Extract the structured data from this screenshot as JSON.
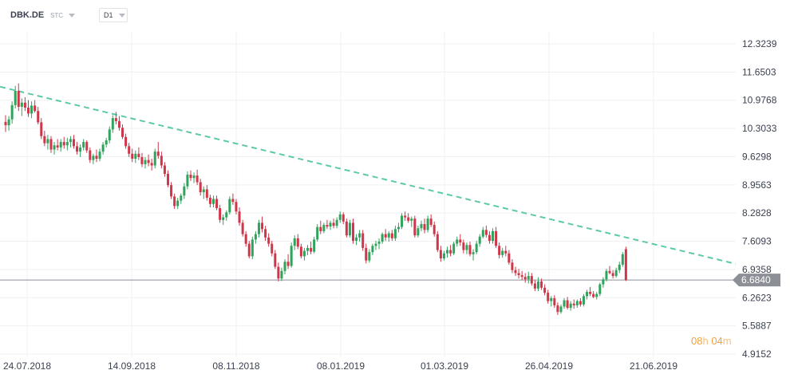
{
  "toolbar": {
    "symbol": "DBK.DE",
    "instrument_type": "STC",
    "timeframe": "D1"
  },
  "timer": {
    "hours": "08",
    "hours_unit": "h",
    "minutes": "04",
    "minutes_unit": "m"
  },
  "colors": {
    "up": "#2fa35b",
    "down": "#d0364a",
    "trendline": "#5cc9a7",
    "price_line": "#8a8f97",
    "grid": "#eef0f3",
    "price_tag_bg": "#8c9096"
  },
  "chart_data": {
    "type": "candlestick",
    "y_axis_ticks": [
      "12.3239",
      "11.6503",
      "10.9768",
      "10.3033",
      "9.6298",
      "8.9563",
      "8.2828",
      "7.6093",
      "6.9358",
      "6.2623",
      "5.5887",
      "4.9152"
    ],
    "ylim": [
      4.9152,
      12.3239
    ],
    "x_axis_ticks": [
      "24.07.2018",
      "14.09.2018",
      "08.11.2018",
      "08.01.2019",
      "01.03.2019",
      "26.04.2019",
      "21.06.2019"
    ],
    "last_price": "6.6840",
    "trendline": {
      "start": {
        "date": "2018-07-24",
        "price": 11.3
      },
      "end": {
        "date": "2019-07-05",
        "price": 7.07
      },
      "style": "dashed"
    },
    "grid": true,
    "candles": [
      {
        "o": 10.46,
        "h": 10.62,
        "l": 10.22,
        "c": 10.38
      },
      {
        "o": 10.38,
        "h": 10.6,
        "l": 10.25,
        "c": 10.52
      },
      {
        "o": 10.52,
        "h": 10.95,
        "l": 10.42,
        "c": 10.86
      },
      {
        "o": 10.86,
        "h": 11.32,
        "l": 10.78,
        "c": 11.2
      },
      {
        "o": 11.2,
        "h": 11.38,
        "l": 10.72,
        "c": 10.82
      },
      {
        "o": 10.82,
        "h": 11.02,
        "l": 10.6,
        "c": 10.92
      },
      {
        "o": 10.92,
        "h": 11.05,
        "l": 10.72,
        "c": 10.8
      },
      {
        "o": 10.8,
        "h": 10.98,
        "l": 10.58,
        "c": 10.66
      },
      {
        "o": 10.66,
        "h": 10.95,
        "l": 10.55,
        "c": 10.85
      },
      {
        "o": 10.85,
        "h": 10.98,
        "l": 10.68,
        "c": 10.72
      },
      {
        "o": 10.72,
        "h": 10.82,
        "l": 10.4,
        "c": 10.45
      },
      {
        "o": 10.45,
        "h": 10.55,
        "l": 10.05,
        "c": 10.12
      },
      {
        "o": 10.12,
        "h": 10.25,
        "l": 9.88,
        "c": 9.95
      },
      {
        "o": 9.95,
        "h": 10.15,
        "l": 9.8,
        "c": 10.05
      },
      {
        "o": 10.05,
        "h": 10.12,
        "l": 9.72,
        "c": 9.8
      },
      {
        "o": 9.8,
        "h": 9.98,
        "l": 9.68,
        "c": 9.9
      },
      {
        "o": 9.9,
        "h": 10.05,
        "l": 9.78,
        "c": 9.85
      },
      {
        "o": 9.85,
        "h": 10.05,
        "l": 9.75,
        "c": 9.98
      },
      {
        "o": 9.98,
        "h": 10.1,
        "l": 9.82,
        "c": 9.9
      },
      {
        "o": 9.9,
        "h": 10.08,
        "l": 9.78,
        "c": 9.98
      },
      {
        "o": 9.98,
        "h": 10.12,
        "l": 9.85,
        "c": 10.05
      },
      {
        "o": 10.05,
        "h": 10.15,
        "l": 9.82,
        "c": 9.88
      },
      {
        "o": 9.88,
        "h": 9.98,
        "l": 9.68,
        "c": 9.75
      },
      {
        "o": 9.75,
        "h": 9.92,
        "l": 9.62,
        "c": 9.85
      },
      {
        "o": 9.85,
        "h": 10.05,
        "l": 9.78,
        "c": 9.98
      },
      {
        "o": 9.98,
        "h": 10.02,
        "l": 9.72,
        "c": 9.78
      },
      {
        "o": 9.78,
        "h": 9.85,
        "l": 9.48,
        "c": 9.55
      },
      {
        "o": 9.55,
        "h": 9.7,
        "l": 9.45,
        "c": 9.65
      },
      {
        "o": 9.65,
        "h": 9.8,
        "l": 9.5,
        "c": 9.58
      },
      {
        "o": 9.58,
        "h": 9.82,
        "l": 9.52,
        "c": 9.75
      },
      {
        "o": 9.75,
        "h": 9.98,
        "l": 9.68,
        "c": 9.92
      },
      {
        "o": 9.92,
        "h": 10.08,
        "l": 9.85,
        "c": 10.02
      },
      {
        "o": 10.02,
        "h": 10.35,
        "l": 9.95,
        "c": 10.28
      },
      {
        "o": 10.28,
        "h": 10.62,
        "l": 10.2,
        "c": 10.55
      },
      {
        "o": 10.55,
        "h": 10.7,
        "l": 10.4,
        "c": 10.48
      },
      {
        "o": 10.48,
        "h": 10.6,
        "l": 10.25,
        "c": 10.32
      },
      {
        "o": 10.32,
        "h": 10.4,
        "l": 10.05,
        "c": 10.1
      },
      {
        "o": 10.1,
        "h": 10.18,
        "l": 9.82,
        "c": 9.88
      },
      {
        "o": 9.88,
        "h": 9.96,
        "l": 9.62,
        "c": 9.7
      },
      {
        "o": 9.7,
        "h": 9.82,
        "l": 9.5,
        "c": 9.58
      },
      {
        "o": 9.58,
        "h": 9.78,
        "l": 9.48,
        "c": 9.7
      },
      {
        "o": 9.7,
        "h": 9.85,
        "l": 9.55,
        "c": 9.62
      },
      {
        "o": 9.62,
        "h": 9.72,
        "l": 9.38,
        "c": 9.45
      },
      {
        "o": 9.45,
        "h": 9.62,
        "l": 9.35,
        "c": 9.55
      },
      {
        "o": 9.55,
        "h": 9.68,
        "l": 9.4,
        "c": 9.48
      },
      {
        "o": 9.48,
        "h": 9.58,
        "l": 9.3,
        "c": 9.42
      },
      {
        "o": 9.42,
        "h": 9.82,
        "l": 9.35,
        "c": 9.75
      },
      {
        "o": 9.75,
        "h": 9.98,
        "l": 9.58,
        "c": 9.65
      },
      {
        "o": 9.65,
        "h": 9.75,
        "l": 9.35,
        "c": 9.42
      },
      {
        "o": 9.42,
        "h": 9.5,
        "l": 9.15,
        "c": 9.22
      },
      {
        "o": 9.22,
        "h": 9.3,
        "l": 8.9,
        "c": 8.95
      },
      {
        "o": 8.95,
        "h": 9.02,
        "l": 8.62,
        "c": 8.68
      },
      {
        "o": 8.68,
        "h": 8.75,
        "l": 8.38,
        "c": 8.45
      },
      {
        "o": 8.45,
        "h": 8.65,
        "l": 8.38,
        "c": 8.58
      },
      {
        "o": 8.58,
        "h": 8.75,
        "l": 8.5,
        "c": 8.7
      },
      {
        "o": 8.7,
        "h": 9.0,
        "l": 8.62,
        "c": 8.92
      },
      {
        "o": 8.92,
        "h": 9.28,
        "l": 8.85,
        "c": 9.2
      },
      {
        "o": 9.2,
        "h": 9.3,
        "l": 9.05,
        "c": 9.12
      },
      {
        "o": 9.12,
        "h": 9.25,
        "l": 9.0,
        "c": 9.18
      },
      {
        "o": 9.18,
        "h": 9.32,
        "l": 8.95,
        "c": 9.02
      },
      {
        "o": 9.02,
        "h": 9.1,
        "l": 8.7,
        "c": 8.78
      },
      {
        "o": 8.78,
        "h": 8.92,
        "l": 8.62,
        "c": 8.85
      },
      {
        "o": 8.85,
        "h": 8.95,
        "l": 8.58,
        "c": 8.65
      },
      {
        "o": 8.65,
        "h": 8.72,
        "l": 8.42,
        "c": 8.5
      },
      {
        "o": 8.5,
        "h": 8.7,
        "l": 8.42,
        "c": 8.62
      },
      {
        "o": 8.62,
        "h": 8.7,
        "l": 8.35,
        "c": 8.4
      },
      {
        "o": 8.4,
        "h": 8.48,
        "l": 8.05,
        "c": 8.12
      },
      {
        "o": 8.12,
        "h": 8.25,
        "l": 8.0,
        "c": 8.18
      },
      {
        "o": 8.18,
        "h": 8.35,
        "l": 8.1,
        "c": 8.3
      },
      {
        "o": 8.3,
        "h": 8.68,
        "l": 8.25,
        "c": 8.62
      },
      {
        "o": 8.62,
        "h": 8.75,
        "l": 8.48,
        "c": 8.55
      },
      {
        "o": 8.55,
        "h": 8.62,
        "l": 8.25,
        "c": 8.32
      },
      {
        "o": 8.32,
        "h": 8.42,
        "l": 7.98,
        "c": 8.05
      },
      {
        "o": 8.05,
        "h": 8.12,
        "l": 7.72,
        "c": 7.78
      },
      {
        "o": 7.78,
        "h": 7.85,
        "l": 7.48,
        "c": 7.55
      },
      {
        "o": 7.55,
        "h": 7.62,
        "l": 7.2,
        "c": 7.25
      },
      {
        "o": 7.25,
        "h": 7.72,
        "l": 7.18,
        "c": 7.65
      },
      {
        "o": 7.65,
        "h": 7.85,
        "l": 7.55,
        "c": 7.78
      },
      {
        "o": 7.78,
        "h": 8.12,
        "l": 7.7,
        "c": 8.05
      },
      {
        "o": 8.05,
        "h": 8.2,
        "l": 7.82,
        "c": 7.9
      },
      {
        "o": 7.9,
        "h": 7.98,
        "l": 7.62,
        "c": 7.7
      },
      {
        "o": 7.7,
        "h": 7.8,
        "l": 7.48,
        "c": 7.55
      },
      {
        "o": 7.55,
        "h": 7.62,
        "l": 7.25,
        "c": 7.32
      },
      {
        "o": 7.32,
        "h": 7.4,
        "l": 6.95,
        "c": 7.0
      },
      {
        "o": 7.0,
        "h": 7.1,
        "l": 6.65,
        "c": 6.72
      },
      {
        "o": 6.72,
        "h": 6.98,
        "l": 6.66,
        "c": 6.9
      },
      {
        "o": 6.9,
        "h": 7.18,
        "l": 6.82,
        "c": 7.12
      },
      {
        "o": 7.12,
        "h": 7.3,
        "l": 6.95,
        "c": 7.02
      },
      {
        "o": 7.02,
        "h": 7.58,
        "l": 6.98,
        "c": 7.5
      },
      {
        "o": 7.5,
        "h": 7.75,
        "l": 7.4,
        "c": 7.68
      },
      {
        "o": 7.68,
        "h": 7.78,
        "l": 7.42,
        "c": 7.48
      },
      {
        "o": 7.48,
        "h": 7.55,
        "l": 7.2,
        "c": 7.25
      },
      {
        "o": 7.25,
        "h": 7.45,
        "l": 7.15,
        "c": 7.38
      },
      {
        "o": 7.38,
        "h": 7.52,
        "l": 7.28,
        "c": 7.45
      },
      {
        "o": 7.45,
        "h": 7.6,
        "l": 7.3,
        "c": 7.36
      },
      {
        "o": 7.36,
        "h": 7.72,
        "l": 7.32,
        "c": 7.65
      },
      {
        "o": 7.65,
        "h": 8.02,
        "l": 7.6,
        "c": 7.95
      },
      {
        "o": 7.95,
        "h": 8.1,
        "l": 7.78,
        "c": 7.85
      },
      {
        "o": 7.85,
        "h": 8.05,
        "l": 7.8,
        "c": 8.0
      },
      {
        "o": 8.0,
        "h": 8.12,
        "l": 7.9,
        "c": 7.96
      },
      {
        "o": 7.96,
        "h": 8.1,
        "l": 7.88,
        "c": 8.05
      },
      {
        "o": 8.05,
        "h": 8.15,
        "l": 7.92,
        "c": 7.98
      },
      {
        "o": 7.98,
        "h": 8.18,
        "l": 7.92,
        "c": 8.12
      },
      {
        "o": 8.12,
        "h": 8.32,
        "l": 8.05,
        "c": 8.25
      },
      {
        "o": 8.25,
        "h": 8.3,
        "l": 8.02,
        "c": 8.08
      },
      {
        "o": 8.08,
        "h": 8.15,
        "l": 7.7,
        "c": 7.75
      },
      {
        "o": 7.75,
        "h": 8.12,
        "l": 7.7,
        "c": 8.05
      },
      {
        "o": 8.05,
        "h": 8.15,
        "l": 7.55,
        "c": 7.62
      },
      {
        "o": 7.62,
        "h": 7.78,
        "l": 7.52,
        "c": 7.7
      },
      {
        "o": 7.7,
        "h": 7.88,
        "l": 7.6,
        "c": 7.8
      },
      {
        "o": 7.8,
        "h": 7.88,
        "l": 7.38,
        "c": 7.45
      },
      {
        "o": 7.45,
        "h": 7.55,
        "l": 7.08,
        "c": 7.15
      },
      {
        "o": 7.15,
        "h": 7.42,
        "l": 7.1,
        "c": 7.35
      },
      {
        "o": 7.35,
        "h": 7.55,
        "l": 7.28,
        "c": 7.5
      },
      {
        "o": 7.5,
        "h": 7.62,
        "l": 7.4,
        "c": 7.55
      },
      {
        "o": 7.55,
        "h": 7.68,
        "l": 7.42,
        "c": 7.6
      },
      {
        "o": 7.6,
        "h": 7.82,
        "l": 7.55,
        "c": 7.78
      },
      {
        "o": 7.78,
        "h": 7.9,
        "l": 7.62,
        "c": 7.7
      },
      {
        "o": 7.7,
        "h": 7.85,
        "l": 7.6,
        "c": 7.8
      },
      {
        "o": 7.8,
        "h": 7.88,
        "l": 7.62,
        "c": 7.68
      },
      {
        "o": 7.68,
        "h": 7.98,
        "l": 7.62,
        "c": 7.9
      },
      {
        "o": 7.9,
        "h": 8.05,
        "l": 7.82,
        "c": 7.95
      },
      {
        "o": 7.95,
        "h": 8.28,
        "l": 7.9,
        "c": 8.22
      },
      {
        "o": 8.22,
        "h": 8.32,
        "l": 8.1,
        "c": 8.18
      },
      {
        "o": 8.18,
        "h": 8.28,
        "l": 8.05,
        "c": 8.1
      },
      {
        "o": 8.1,
        "h": 8.2,
        "l": 7.95,
        "c": 8.15
      },
      {
        "o": 8.15,
        "h": 8.22,
        "l": 7.7,
        "c": 7.75
      },
      {
        "o": 7.75,
        "h": 7.98,
        "l": 7.7,
        "c": 7.92
      },
      {
        "o": 7.92,
        "h": 8.1,
        "l": 7.85,
        "c": 8.02
      },
      {
        "o": 8.02,
        "h": 8.15,
        "l": 7.8,
        "c": 7.88
      },
      {
        "o": 7.88,
        "h": 8.22,
        "l": 7.82,
        "c": 8.15
      },
      {
        "o": 8.15,
        "h": 8.25,
        "l": 7.95,
        "c": 8.0
      },
      {
        "o": 8.0,
        "h": 8.08,
        "l": 7.72,
        "c": 7.78
      },
      {
        "o": 7.78,
        "h": 7.85,
        "l": 7.35,
        "c": 7.4
      },
      {
        "o": 7.4,
        "h": 7.5,
        "l": 7.12,
        "c": 7.2
      },
      {
        "o": 7.2,
        "h": 7.38,
        "l": 7.15,
        "c": 7.32
      },
      {
        "o": 7.32,
        "h": 7.48,
        "l": 7.22,
        "c": 7.4
      },
      {
        "o": 7.4,
        "h": 7.52,
        "l": 7.25,
        "c": 7.32
      },
      {
        "o": 7.32,
        "h": 7.6,
        "l": 7.28,
        "c": 7.55
      },
      {
        "o": 7.55,
        "h": 7.72,
        "l": 7.48,
        "c": 7.65
      },
      {
        "o": 7.65,
        "h": 7.78,
        "l": 7.5,
        "c": 7.58
      },
      {
        "o": 7.58,
        "h": 7.65,
        "l": 7.32,
        "c": 7.4
      },
      {
        "o": 7.4,
        "h": 7.58,
        "l": 7.3,
        "c": 7.52
      },
      {
        "o": 7.52,
        "h": 7.6,
        "l": 7.25,
        "c": 7.3
      },
      {
        "o": 7.3,
        "h": 7.42,
        "l": 7.15,
        "c": 7.35
      },
      {
        "o": 7.35,
        "h": 7.62,
        "l": 7.3,
        "c": 7.55
      },
      {
        "o": 7.55,
        "h": 7.78,
        "l": 7.48,
        "c": 7.72
      },
      {
        "o": 7.72,
        "h": 7.95,
        "l": 7.68,
        "c": 7.88
      },
      {
        "o": 7.88,
        "h": 7.98,
        "l": 7.7,
        "c": 7.76
      },
      {
        "o": 7.76,
        "h": 7.85,
        "l": 7.55,
        "c": 7.62
      },
      {
        "o": 7.62,
        "h": 7.92,
        "l": 7.55,
        "c": 7.85
      },
      {
        "o": 7.85,
        "h": 7.95,
        "l": 7.45,
        "c": 7.5
      },
      {
        "o": 7.5,
        "h": 7.58,
        "l": 7.2,
        "c": 7.28
      },
      {
        "o": 7.28,
        "h": 7.45,
        "l": 7.22,
        "c": 7.38
      },
      {
        "o": 7.38,
        "h": 7.5,
        "l": 7.25,
        "c": 7.32
      },
      {
        "o": 7.32,
        "h": 7.4,
        "l": 7.05,
        "c": 7.1
      },
      {
        "o": 7.1,
        "h": 7.18,
        "l": 6.85,
        "c": 6.92
      },
      {
        "o": 6.92,
        "h": 7.0,
        "l": 6.78,
        "c": 6.85
      },
      {
        "o": 6.85,
        "h": 6.95,
        "l": 6.72,
        "c": 6.8
      },
      {
        "o": 6.8,
        "h": 6.9,
        "l": 6.68,
        "c": 6.76
      },
      {
        "o": 6.76,
        "h": 6.85,
        "l": 6.62,
        "c": 6.7
      },
      {
        "o": 6.7,
        "h": 6.88,
        "l": 6.6,
        "c": 6.78
      },
      {
        "o": 6.78,
        "h": 6.85,
        "l": 6.55,
        "c": 6.6
      },
      {
        "o": 6.6,
        "h": 6.68,
        "l": 6.42,
        "c": 6.48
      },
      {
        "o": 6.48,
        "h": 6.75,
        "l": 6.42,
        "c": 6.65
      },
      {
        "o": 6.65,
        "h": 6.72,
        "l": 6.45,
        "c": 6.5
      },
      {
        "o": 6.5,
        "h": 6.58,
        "l": 6.32,
        "c": 6.38
      },
      {
        "o": 6.38,
        "h": 6.45,
        "l": 6.12,
        "c": 6.18
      },
      {
        "o": 6.18,
        "h": 6.3,
        "l": 6.05,
        "c": 6.25
      },
      {
        "o": 6.25,
        "h": 6.32,
        "l": 6.02,
        "c": 6.08
      },
      {
        "o": 6.08,
        "h": 6.15,
        "l": 5.85,
        "c": 5.92
      },
      {
        "o": 5.92,
        "h": 6.1,
        "l": 5.88,
        "c": 6.05
      },
      {
        "o": 6.05,
        "h": 6.25,
        "l": 6.0,
        "c": 6.2
      },
      {
        "o": 6.2,
        "h": 6.28,
        "l": 5.98,
        "c": 6.02
      },
      {
        "o": 6.02,
        "h": 6.18,
        "l": 5.95,
        "c": 6.12
      },
      {
        "o": 6.12,
        "h": 6.22,
        "l": 6.0,
        "c": 6.08
      },
      {
        "o": 6.08,
        "h": 6.22,
        "l": 6.02,
        "c": 6.18
      },
      {
        "o": 6.18,
        "h": 6.25,
        "l": 6.05,
        "c": 6.1
      },
      {
        "o": 6.1,
        "h": 6.35,
        "l": 6.05,
        "c": 6.3
      },
      {
        "o": 6.3,
        "h": 6.45,
        "l": 6.22,
        "c": 6.4
      },
      {
        "o": 6.4,
        "h": 6.52,
        "l": 6.3,
        "c": 6.35
      },
      {
        "o": 6.35,
        "h": 6.42,
        "l": 6.25,
        "c": 6.28
      },
      {
        "o": 6.28,
        "h": 6.4,
        "l": 6.22,
        "c": 6.35
      },
      {
        "o": 6.35,
        "h": 6.62,
        "l": 6.3,
        "c": 6.58
      },
      {
        "o": 6.58,
        "h": 6.75,
        "l": 6.5,
        "c": 6.7
      },
      {
        "o": 6.7,
        "h": 6.95,
        "l": 6.65,
        "c": 6.9
      },
      {
        "o": 6.9,
        "h": 7.02,
        "l": 6.82,
        "c": 6.85
      },
      {
        "o": 6.85,
        "h": 6.92,
        "l": 6.72,
        "c": 6.78
      },
      {
        "o": 6.78,
        "h": 6.98,
        "l": 6.74,
        "c": 6.92
      },
      {
        "o": 6.92,
        "h": 7.12,
        "l": 6.85,
        "c": 7.05
      },
      {
        "o": 7.05,
        "h": 7.35,
        "l": 7.0,
        "c": 7.3
      },
      {
        "o": 7.42,
        "h": 7.48,
        "l": 6.66,
        "c": 6.68
      }
    ]
  }
}
